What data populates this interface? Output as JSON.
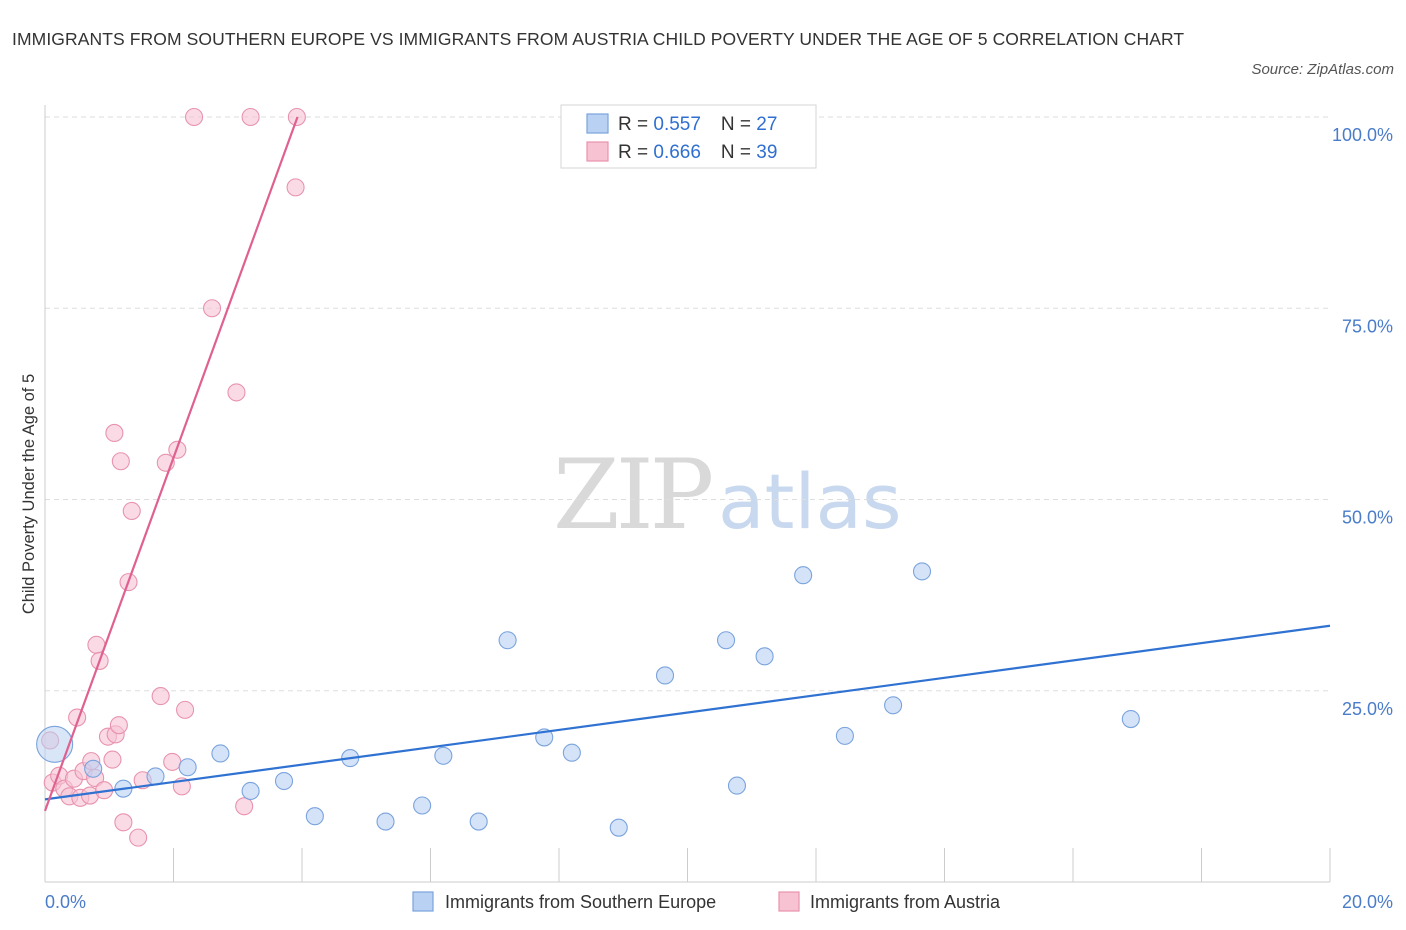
{
  "header": {
    "title": "IMMIGRANTS FROM SOUTHERN EUROPE VS IMMIGRANTS FROM AUSTRIA CHILD POVERTY UNDER THE AGE OF 5 CORRELATION CHART",
    "source": "Source: ZipAtlas.com"
  },
  "watermark": {
    "zip": "ZIP",
    "atlas": "atlas"
  },
  "colors": {
    "blue_fill": "#b9d1f3",
    "blue_stroke": "#7aa3dd",
    "blue_line": "#2f72d2",
    "pink_fill": "#f7c3d3",
    "pink_stroke": "#e893ae",
    "pink_line": "#e0608f",
    "grid": "#dddddd",
    "tick_text": "#4a7cc9"
  },
  "legend": {
    "series": [
      {
        "r_label": "R = ",
        "r_value": "0.557",
        "n_label": "N = ",
        "n_value": "27"
      },
      {
        "r_label": "R = ",
        "r_value": "0.666",
        "n_label": "N = ",
        "n_value": "39"
      }
    ]
  },
  "chart_data": {
    "type": "scatter",
    "title": "IMMIGRANTS FROM SOUTHERN EUROPE VS IMMIGRANTS FROM AUSTRIA CHILD POVERTY UNDER THE AGE OF 5 CORRELATION CHART",
    "xlabel": "",
    "ylabel": "Child Poverty Under the Age of 5",
    "xlim": [
      0,
      20
    ],
    "ylim": [
      0,
      100
    ],
    "x_tick_labels": [
      "0.0%",
      "20.0%"
    ],
    "y_ticks": [
      25,
      50,
      75,
      100
    ],
    "y_tick_labels": [
      "25.0%",
      "50.0%",
      "75.0%",
      "100.0%"
    ],
    "grid": true,
    "series": [
      {
        "name": "Immigrants from Southern Europe",
        "r": 0.557,
        "n": 27,
        "points": [
          [
            0.15,
            18.0
          ],
          [
            0.75,
            14.8
          ],
          [
            1.22,
            12.2
          ],
          [
            1.72,
            13.8
          ],
          [
            2.22,
            15.0
          ],
          [
            2.73,
            16.8
          ],
          [
            3.2,
            11.9
          ],
          [
            3.72,
            13.2
          ],
          [
            4.2,
            8.6
          ],
          [
            4.75,
            16.2
          ],
          [
            5.3,
            7.9
          ],
          [
            5.87,
            10.0
          ],
          [
            6.2,
            16.5
          ],
          [
            6.75,
            7.9
          ],
          [
            7.2,
            31.6
          ],
          [
            7.77,
            18.9
          ],
          [
            8.2,
            16.9
          ],
          [
            8.93,
            7.1
          ],
          [
            9.65,
            27.0
          ],
          [
            10.6,
            31.6
          ],
          [
            10.77,
            12.6
          ],
          [
            11.2,
            29.5
          ],
          [
            11.8,
            40.1
          ],
          [
            12.45,
            19.1
          ],
          [
            13.2,
            23.1
          ],
          [
            13.65,
            40.6
          ],
          [
            16.9,
            21.3
          ]
        ],
        "trend": [
          [
            0,
            10.8
          ],
          [
            20,
            33.5
          ]
        ]
      },
      {
        "name": "Immigrants from Austria",
        "r": 0.666,
        "n": 39,
        "points": [
          [
            0.08,
            18.5
          ],
          [
            0.12,
            13.0
          ],
          [
            0.22,
            13.9
          ],
          [
            0.3,
            12.2
          ],
          [
            0.38,
            11.2
          ],
          [
            0.45,
            13.5
          ],
          [
            0.5,
            21.5
          ],
          [
            0.55,
            11.0
          ],
          [
            0.6,
            14.5
          ],
          [
            0.7,
            11.3
          ],
          [
            0.72,
            15.8
          ],
          [
            0.78,
            13.6
          ],
          [
            0.8,
            31.0
          ],
          [
            0.85,
            28.9
          ],
          [
            0.92,
            12.0
          ],
          [
            0.98,
            19.0
          ],
          [
            1.05,
            16.0
          ],
          [
            1.08,
            58.7
          ],
          [
            1.1,
            19.3
          ],
          [
            1.15,
            20.5
          ],
          [
            1.18,
            55.0
          ],
          [
            1.22,
            7.8
          ],
          [
            1.3,
            39.2
          ],
          [
            1.35,
            48.5
          ],
          [
            1.45,
            5.8
          ],
          [
            1.52,
            13.3
          ],
          [
            1.8,
            24.3
          ],
          [
            1.88,
            54.8
          ],
          [
            1.98,
            15.7
          ],
          [
            2.06,
            56.5
          ],
          [
            2.13,
            12.5
          ],
          [
            2.18,
            22.5
          ],
          [
            2.32,
            100.0
          ],
          [
            2.6,
            75.0
          ],
          [
            2.98,
            64.0
          ],
          [
            3.1,
            9.9
          ],
          [
            3.2,
            100.0
          ],
          [
            3.92,
            100.0
          ],
          [
            3.9,
            90.8
          ]
        ],
        "trend": [
          [
            0,
            9.3
          ],
          [
            3.93,
            100.0
          ]
        ]
      }
    ]
  }
}
